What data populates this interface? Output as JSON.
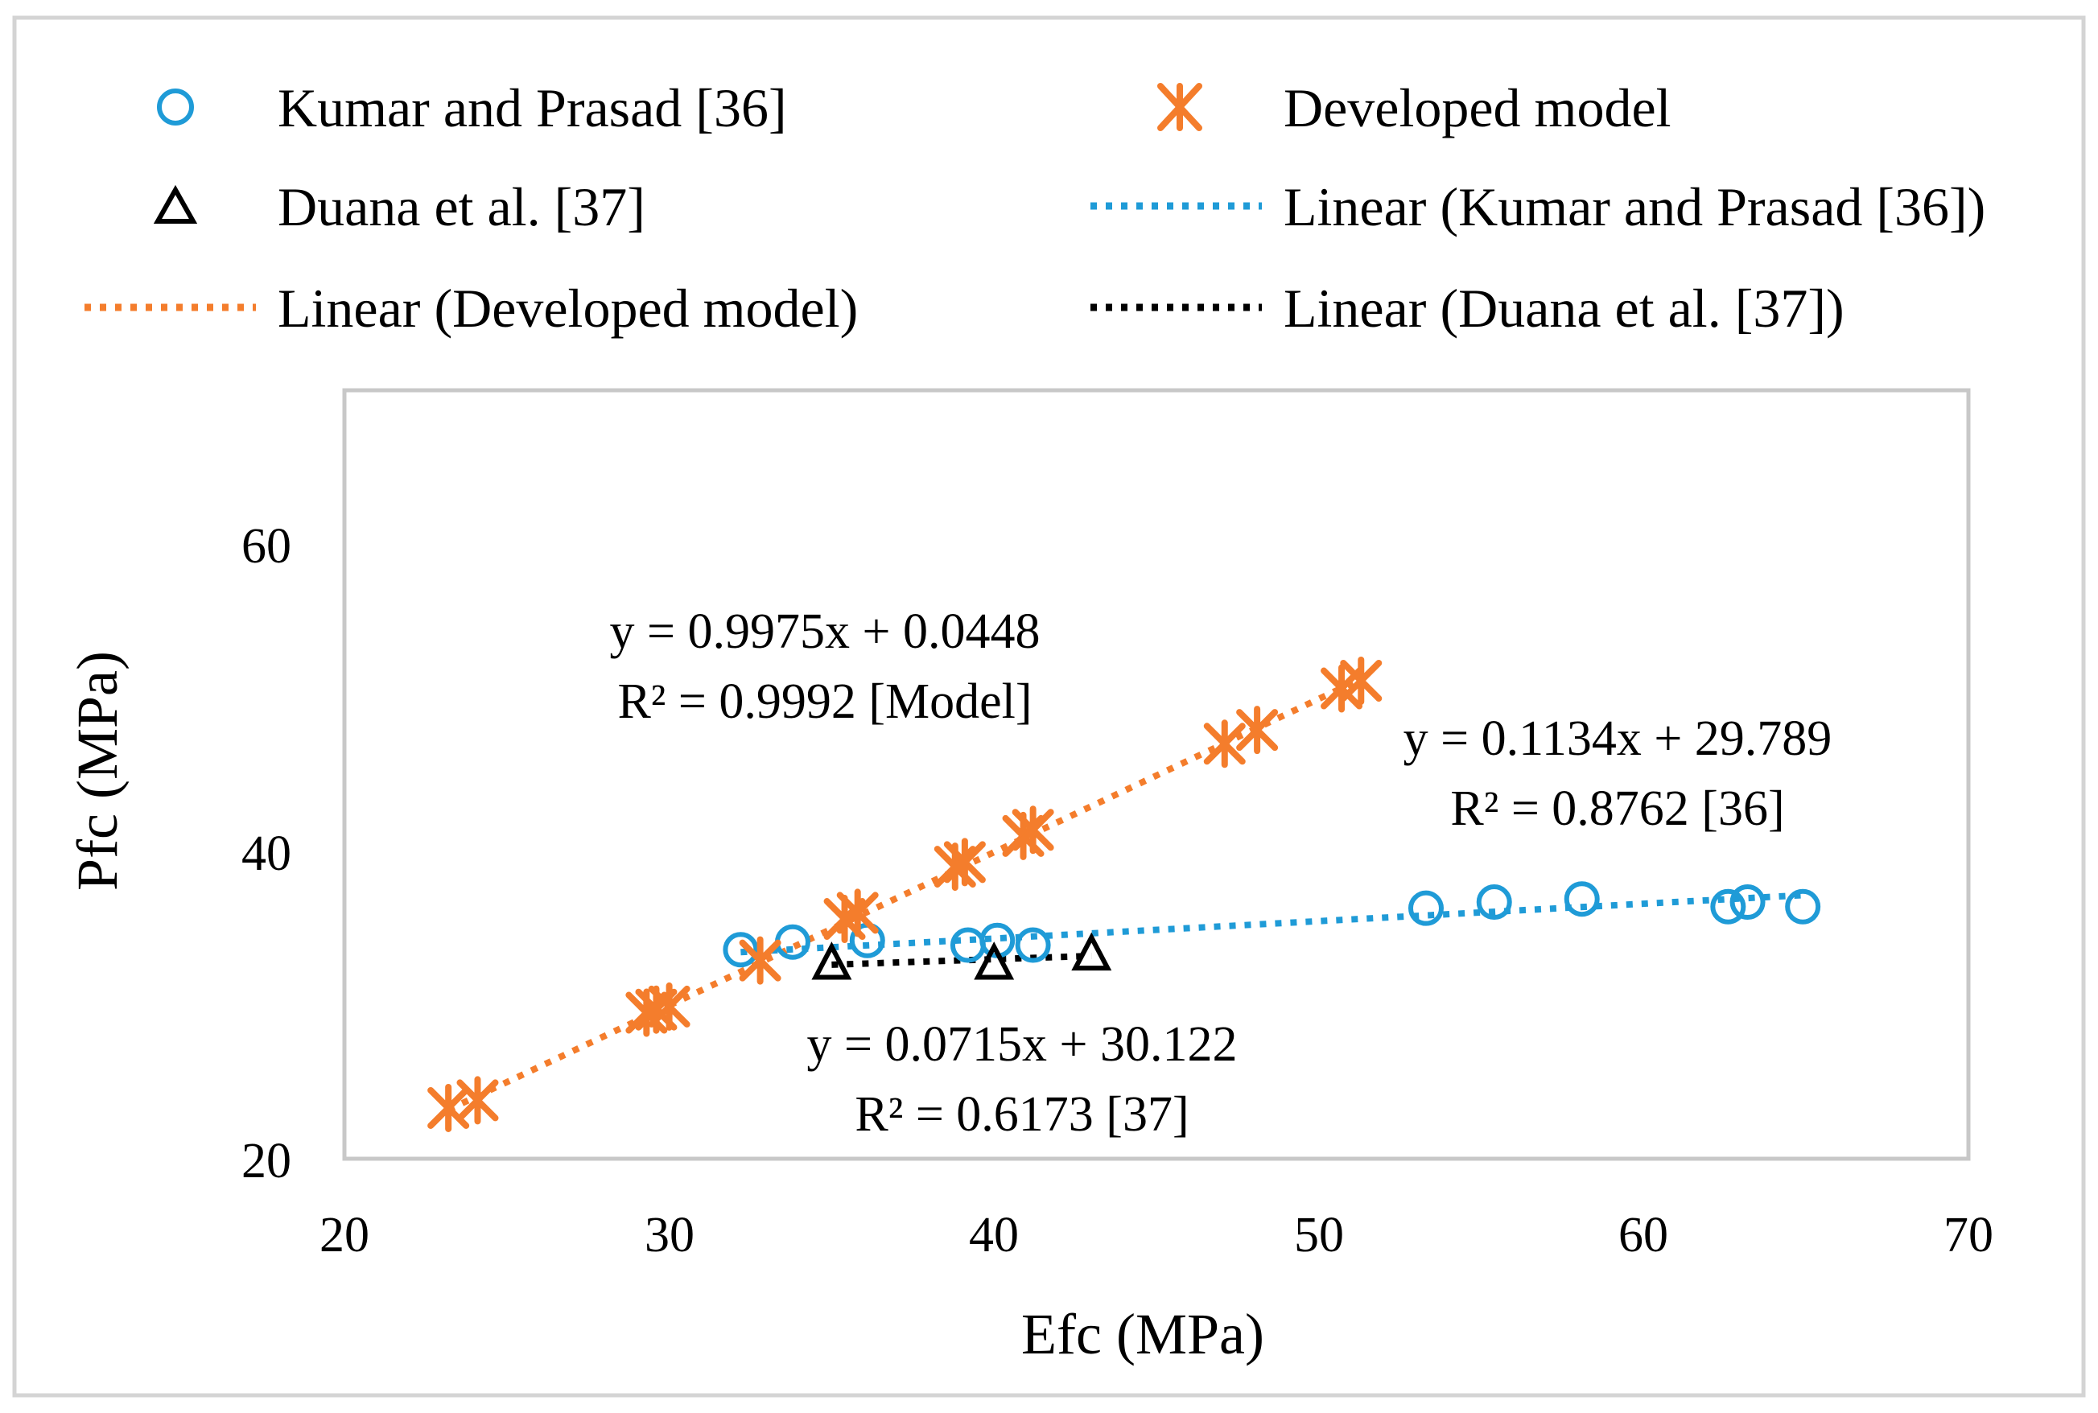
{
  "chart_data": {
    "type": "scatter",
    "title": "",
    "xlabel": "Efc (MPa)",
    "ylabel": "Pfc (MPa)",
    "xlim": [
      20,
      70
    ],
    "ylim": [
      20,
      70
    ],
    "x_ticks": [
      "20",
      "30",
      "40",
      "50",
      "60",
      "70"
    ],
    "y_ticks": [
      "20",
      "40",
      "60"
    ],
    "grid": false,
    "legend_position": "top",
    "colors": {
      "blue": "#1f9bd7",
      "orange": "#f47d2c",
      "black": "#000000",
      "frame": "#c8c8c8"
    },
    "series": [
      {
        "name": "Kumar and Prasad [36]",
        "marker": "circle",
        "color": "#1f9bd7",
        "points": [
          [
            32.2,
            33.6
          ],
          [
            33.8,
            34.1
          ],
          [
            36.1,
            34.2
          ],
          [
            39.2,
            33.9
          ],
          [
            40.1,
            34.2
          ],
          [
            41.2,
            33.9
          ],
          [
            53.3,
            36.3
          ],
          [
            55.4,
            36.7
          ],
          [
            58.1,
            36.9
          ],
          [
            62.6,
            36.4
          ],
          [
            63.2,
            36.7
          ],
          [
            64.9,
            36.4
          ]
        ],
        "trendline": {
          "name": "Linear (Kumar and Prasad [36])",
          "slope": 0.1134,
          "intercept": 29.789,
          "x_range": [
            32.2,
            64.9
          ],
          "equation": "y = 0.1134x + 29.789",
          "r2": "R² = 0.8762 [36]"
        }
      },
      {
        "name": "Developed model",
        "marker": "asterisk",
        "color": "#f47d2c",
        "points": [
          [
            23.2,
            23.3
          ],
          [
            24.1,
            23.8
          ],
          [
            29.3,
            29.5
          ],
          [
            29.6,
            29.7
          ],
          [
            30.0,
            29.9
          ],
          [
            32.8,
            32.9
          ],
          [
            35.4,
            35.6
          ],
          [
            35.8,
            36.0
          ],
          [
            38.8,
            39.0
          ],
          [
            39.1,
            39.3
          ],
          [
            40.9,
            41.0
          ],
          [
            41.2,
            41.4
          ],
          [
            47.1,
            47.0
          ],
          [
            48.1,
            47.9
          ],
          [
            50.7,
            50.6
          ],
          [
            51.3,
            51.1
          ]
        ],
        "trendline": {
          "name": "Linear (Developed model)",
          "slope": 0.9975,
          "intercept": 0.0448,
          "x_range": [
            23.2,
            51.3
          ],
          "equation": "y = 0.9975x + 0.0448",
          "r2": "R² = 0.9992 [Model]"
        }
      },
      {
        "name": "Duana et al. [37]",
        "marker": "triangle",
        "color": "#000000",
        "points": [
          [
            35.0,
            32.6
          ],
          [
            40.0,
            32.6
          ],
          [
            43.0,
            33.2
          ]
        ],
        "trendline": {
          "name": "Linear (Duana et al. [37])",
          "slope": 0.0715,
          "intercept": 30.122,
          "x_range": [
            35.0,
            43.0
          ],
          "equation": "y = 0.0715x + 30.122",
          "r2": "R² = 0.6173 [37]"
        }
      }
    ]
  }
}
